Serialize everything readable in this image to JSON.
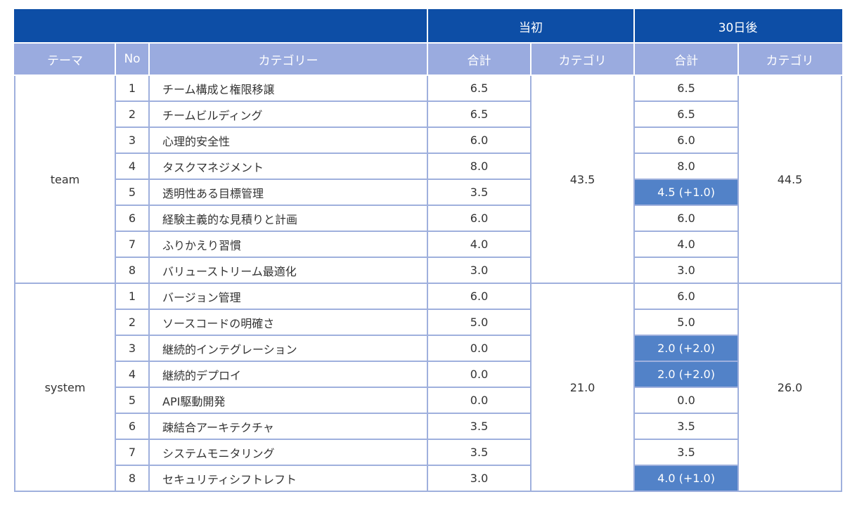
{
  "header": {
    "initial_label": "当初",
    "after_label": "30日後",
    "col_theme": "テーマ",
    "col_no": "No",
    "col_category": "カテゴリー",
    "col_total_initial": "合計",
    "col_category_initial": "カテゴリ",
    "col_total_after": "合計",
    "col_category_after": "カテゴリ"
  },
  "groups": [
    {
      "theme": "team",
      "initial_category_total": "43.5",
      "after_category_total": "44.5",
      "rows": [
        {
          "no": "1",
          "category": "チーム構成と権限移譲",
          "initial": "6.5",
          "after": "6.5",
          "highlight": false
        },
        {
          "no": "2",
          "category": "チームビルディング",
          "initial": "6.5",
          "after": "6.5",
          "highlight": false
        },
        {
          "no": "3",
          "category": "心理的安全性",
          "initial": "6.0",
          "after": "6.0",
          "highlight": false
        },
        {
          "no": "4",
          "category": "タスクマネジメント",
          "initial": "8.0",
          "after": "8.0",
          "highlight": false
        },
        {
          "no": "5",
          "category": "透明性ある目標管理",
          "initial": "3.5",
          "after": "4.5 (+1.0)",
          "highlight": true
        },
        {
          "no": "6",
          "category": "経験主義的な見積りと計画",
          "initial": "6.0",
          "after": "6.0",
          "highlight": false
        },
        {
          "no": "7",
          "category": "ふりかえり習慣",
          "initial": "4.0",
          "after": "4.0",
          "highlight": false
        },
        {
          "no": "8",
          "category": "バリューストリーム最適化",
          "initial": "3.0",
          "after": "3.0",
          "highlight": false
        }
      ]
    },
    {
      "theme": "system",
      "initial_category_total": "21.0",
      "after_category_total": "26.0",
      "rows": [
        {
          "no": "1",
          "category": "バージョン管理",
          "initial": "6.0",
          "after": "6.0",
          "highlight": false
        },
        {
          "no": "2",
          "category": "ソースコードの明確さ",
          "initial": "5.0",
          "after": "5.0",
          "highlight": false
        },
        {
          "no": "3",
          "category": "継続的インテグレーション",
          "initial": "0.0",
          "after": "2.0 (+2.0)",
          "highlight": true
        },
        {
          "no": "4",
          "category": "継続的デプロイ",
          "initial": "0.0",
          "after": "2.0 (+2.0)",
          "highlight": true
        },
        {
          "no": "5",
          "category": "API駆動開発",
          "initial": "0.0",
          "after": "0.0",
          "highlight": false
        },
        {
          "no": "6",
          "category": "疎結合アーキテクチャ",
          "initial": "3.5",
          "after": "3.5",
          "highlight": false
        },
        {
          "no": "7",
          "category": "システムモニタリング",
          "initial": "3.5",
          "after": "3.5",
          "highlight": false
        },
        {
          "no": "8",
          "category": "セキュリティシフトレフト",
          "initial": "3.0",
          "after": "4.0 (+1.0)",
          "highlight": true
        }
      ]
    }
  ],
  "colors": {
    "header_dark": "#0d4ea6",
    "header_light": "#9aabdf",
    "highlight": "#5282c8",
    "border": "#9fb0dd"
  }
}
